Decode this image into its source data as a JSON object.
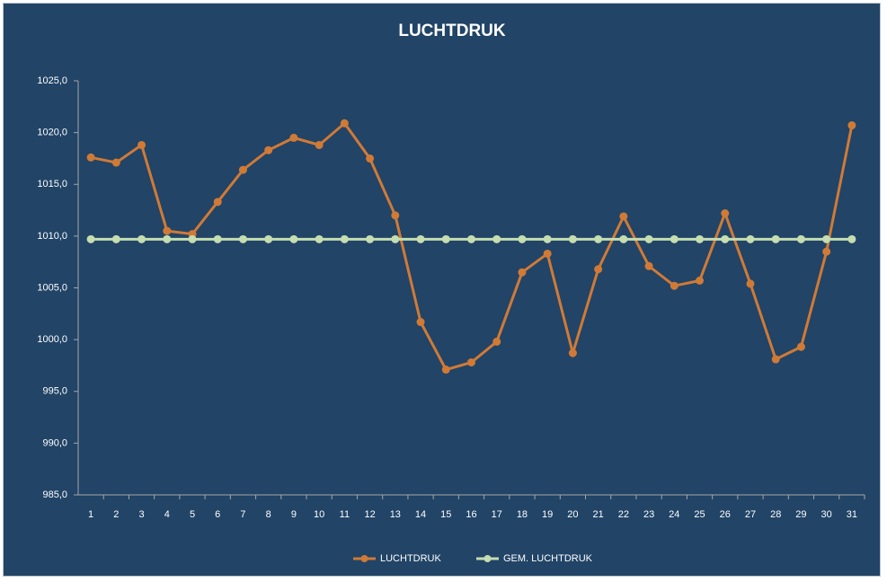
{
  "chart_data": {
    "type": "line",
    "title": "LUCHTDRUK",
    "categories": [
      "1",
      "2",
      "3",
      "4",
      "5",
      "6",
      "7",
      "8",
      "9",
      "10",
      "11",
      "12",
      "13",
      "14",
      "15",
      "16",
      "17",
      "18",
      "19",
      "20",
      "21",
      "22",
      "23",
      "24",
      "25",
      "26",
      "27",
      "28",
      "29",
      "30",
      "31"
    ],
    "series": [
      {
        "name": "LUCHTDRUK",
        "color": "#d07a36",
        "values": [
          1017.6,
          1017.1,
          1018.8,
          1010.5,
          1010.2,
          1013.3,
          1016.4,
          1018.3,
          1019.5,
          1018.8,
          1020.9,
          1017.5,
          1012.0,
          1001.7,
          997.1,
          997.8,
          999.8,
          1006.5,
          1008.3,
          998.7,
          1006.8,
          1011.9,
          1007.1,
          1005.2,
          1005.7,
          1012.2,
          1005.4,
          998.1,
          999.3,
          1008.5,
          1020.7
        ]
      },
      {
        "name": "GEM. LUCHTDRUK",
        "color": "#c5ddb0",
        "values": [
          1009.7,
          1009.7,
          1009.7,
          1009.7,
          1009.7,
          1009.7,
          1009.7,
          1009.7,
          1009.7,
          1009.7,
          1009.7,
          1009.7,
          1009.7,
          1009.7,
          1009.7,
          1009.7,
          1009.7,
          1009.7,
          1009.7,
          1009.7,
          1009.7,
          1009.7,
          1009.7,
          1009.7,
          1009.7,
          1009.7,
          1009.7,
          1009.7,
          1009.7,
          1009.7,
          1009.7
        ]
      }
    ],
    "ylim": [
      985,
      1025
    ],
    "yticks": [
      {
        "value": 985,
        "label": "985,0"
      },
      {
        "value": 990,
        "label": "990,0"
      },
      {
        "value": 995,
        "label": "995,0"
      },
      {
        "value": 1000,
        "label": "1000,0"
      },
      {
        "value": 1005,
        "label": "1005,0"
      },
      {
        "value": 1010,
        "label": "1010,0"
      },
      {
        "value": 1015,
        "label": "1015,0"
      },
      {
        "value": 1020,
        "label": "1020,0"
      },
      {
        "value": 1025,
        "label": "1025,0"
      }
    ],
    "grid": false,
    "legend": "bottom"
  }
}
